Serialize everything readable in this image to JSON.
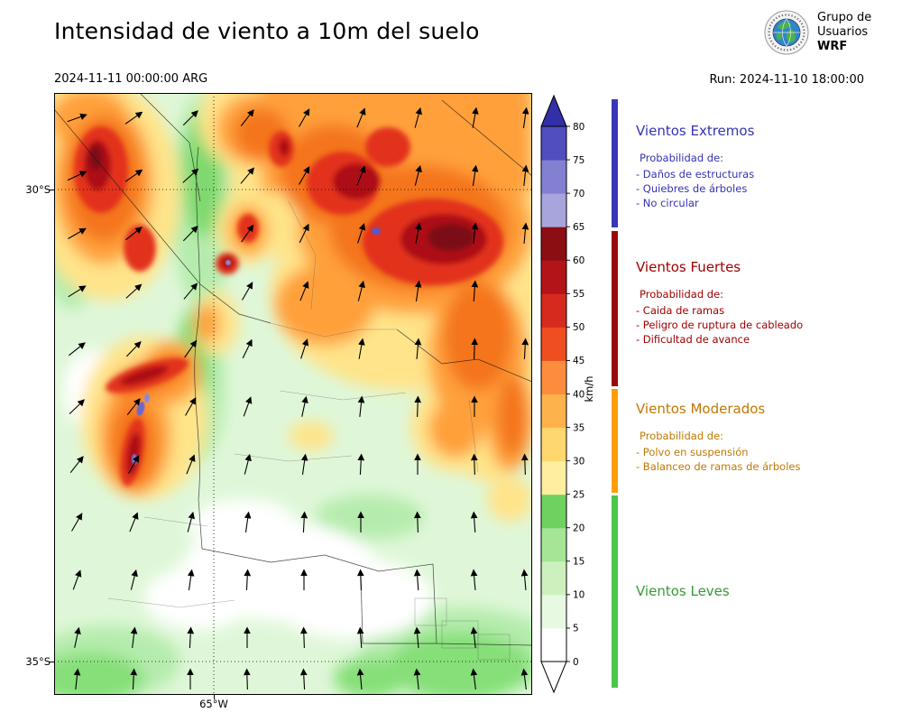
{
  "header": {
    "title": "Intensidad de viento a 10m del suelo",
    "valid_time": "2024-11-11 00:00:00 ARG",
    "run_label": "Run: 2024-11-10 18:00:00",
    "logo_lines": [
      "Grupo de",
      "Usuarios",
      "WRF"
    ]
  },
  "axes": {
    "lat_top": "30°S",
    "lat_bottom": "35°S",
    "lon": "65°W"
  },
  "colorbar": {
    "unit": "km/h",
    "ticks": [
      0,
      5,
      10,
      15,
      20,
      25,
      30,
      35,
      40,
      45,
      50,
      55,
      60,
      65,
      70,
      75,
      80
    ],
    "segment_colors_low_to_high": [
      "#ffffff",
      "#e8f9e2",
      "#ccf1bf",
      "#a5e595",
      "#6fd260",
      "#ffeda0",
      "#fed76e",
      "#feb24c",
      "#fd8d3c",
      "#ef4e20",
      "#d62a1f",
      "#b3141a",
      "#8b0e13",
      "#a8a5dd",
      "#8380d2",
      "#514ec0"
    ],
    "extend_high_color": "#322fa9",
    "extend_low_color": "#ffffff"
  },
  "legend": {
    "categories": [
      {
        "name": "Vientos Extremos",
        "text_color": "#3333b3",
        "strip_color": "#3a36b8",
        "prob_label": "Probabilidad de:",
        "items": [
          "- Daños de estructuras",
          "- Quiebres de árboles",
          "- No circular"
        ]
      },
      {
        "name": "Vientos Fuertes",
        "text_color": "#a00000",
        "strip_color": "#9b0a0a",
        "prob_label": "Probabilidad de:",
        "items": [
          "- Caida de ramas",
          "- Peligro de ruptura de cableado",
          "- Dificultad de avance"
        ]
      },
      {
        "name": "Vientos Moderados",
        "text_color": "#c07800",
        "strip_color": "#ff9d00",
        "prob_label": "Probabilidad de:",
        "items": [
          "- Polvo en suspensión",
          "- Balanceo de ramas de árboles"
        ]
      },
      {
        "name": "Vientos Leves",
        "text_color": "#359a35",
        "strip_color": "#49c849",
        "items": []
      }
    ]
  },
  "chart_data": {
    "type": "heatmap",
    "title": "Intensidad de viento a 10m del suelo",
    "valid_time": "2024-11-11 00:00:00 ARG",
    "model_run": "2024-11-10 18:00:00",
    "variable": "wind speed at 10 m",
    "units": "km/h",
    "colorbar_range": [
      0,
      80
    ],
    "colorbar_tick_step": 5,
    "colorbar_extend": "both",
    "lat_ticks": [
      "30°S",
      "35°S"
    ],
    "lon_ticks": [
      "65°W"
    ],
    "legend_categories": [
      "Vientos Extremos",
      "Vientos Fuertes",
      "Vientos Moderados",
      "Vientos Leves"
    ],
    "wind_arrows_xy_angle": [
      [
        25,
        28,
        70
      ],
      [
        88,
        28,
        55
      ],
      [
        151,
        28,
        45
      ],
      [
        214,
        28,
        38
      ],
      [
        277,
        28,
        30
      ],
      [
        340,
        28,
        22
      ],
      [
        403,
        28,
        15
      ],
      [
        466,
        28,
        10
      ],
      [
        522,
        28,
        8
      ],
      [
        25,
        92,
        65
      ],
      [
        88,
        92,
        55
      ],
      [
        151,
        92,
        48
      ],
      [
        214,
        92,
        40
      ],
      [
        277,
        92,
        30
      ],
      [
        340,
        92,
        22
      ],
      [
        403,
        92,
        14
      ],
      [
        466,
        92,
        8
      ],
      [
        522,
        92,
        6
      ],
      [
        25,
        156,
        60
      ],
      [
        88,
        156,
        52
      ],
      [
        151,
        156,
        44
      ],
      [
        214,
        156,
        35
      ],
      [
        277,
        156,
        26
      ],
      [
        340,
        156,
        18
      ],
      [
        403,
        156,
        10
      ],
      [
        466,
        156,
        6
      ],
      [
        522,
        156,
        5
      ],
      [
        25,
        220,
        58
      ],
      [
        88,
        220,
        48
      ],
      [
        151,
        220,
        40
      ],
      [
        214,
        220,
        30
      ],
      [
        277,
        220,
        22
      ],
      [
        340,
        220,
        14
      ],
      [
        403,
        220,
        8
      ],
      [
        466,
        220,
        4
      ],
      [
        25,
        284,
        52
      ],
      [
        88,
        284,
        44
      ],
      [
        151,
        284,
        35
      ],
      [
        214,
        284,
        26
      ],
      [
        277,
        284,
        18
      ],
      [
        340,
        284,
        10
      ],
      [
        403,
        284,
        5
      ],
      [
        466,
        284,
        2
      ],
      [
        522,
        284,
        3
      ],
      [
        25,
        348,
        46
      ],
      [
        88,
        348,
        38
      ],
      [
        151,
        348,
        30
      ],
      [
        214,
        348,
        20
      ],
      [
        277,
        348,
        12
      ],
      [
        340,
        348,
        6
      ],
      [
        403,
        348,
        2
      ],
      [
        466,
        348,
        0
      ],
      [
        25,
        412,
        38
      ],
      [
        88,
        412,
        30
      ],
      [
        151,
        412,
        22
      ],
      [
        214,
        412,
        14
      ],
      [
        277,
        412,
        8
      ],
      [
        340,
        412,
        3
      ],
      [
        403,
        412,
        0
      ],
      [
        466,
        412,
        -2
      ],
      [
        522,
        412,
        -2
      ],
      [
        25,
        476,
        30
      ],
      [
        88,
        476,
        22
      ],
      [
        151,
        476,
        15
      ],
      [
        214,
        476,
        8
      ],
      [
        277,
        476,
        3
      ],
      [
        340,
        476,
        0
      ],
      [
        403,
        476,
        -2
      ],
      [
        466,
        476,
        -4
      ],
      [
        25,
        540,
        20
      ],
      [
        88,
        540,
        14
      ],
      [
        151,
        540,
        8
      ],
      [
        214,
        540,
        3
      ],
      [
        277,
        540,
        0
      ],
      [
        340,
        540,
        -2
      ],
      [
        403,
        540,
        -4
      ],
      [
        466,
        540,
        -5
      ],
      [
        522,
        540,
        -5
      ],
      [
        25,
        604,
        12
      ],
      [
        88,
        604,
        7
      ],
      [
        151,
        604,
        3
      ],
      [
        214,
        604,
        0
      ],
      [
        277,
        604,
        -2
      ],
      [
        340,
        604,
        -4
      ],
      [
        403,
        604,
        -5
      ],
      [
        466,
        604,
        -6
      ],
      [
        25,
        650,
        6
      ],
      [
        88,
        650,
        3
      ],
      [
        151,
        650,
        0
      ],
      [
        214,
        650,
        -2
      ],
      [
        277,
        650,
        -3
      ],
      [
        340,
        650,
        -5
      ],
      [
        403,
        650,
        -6
      ],
      [
        466,
        650,
        -7
      ],
      [
        522,
        650,
        -7
      ]
    ]
  }
}
